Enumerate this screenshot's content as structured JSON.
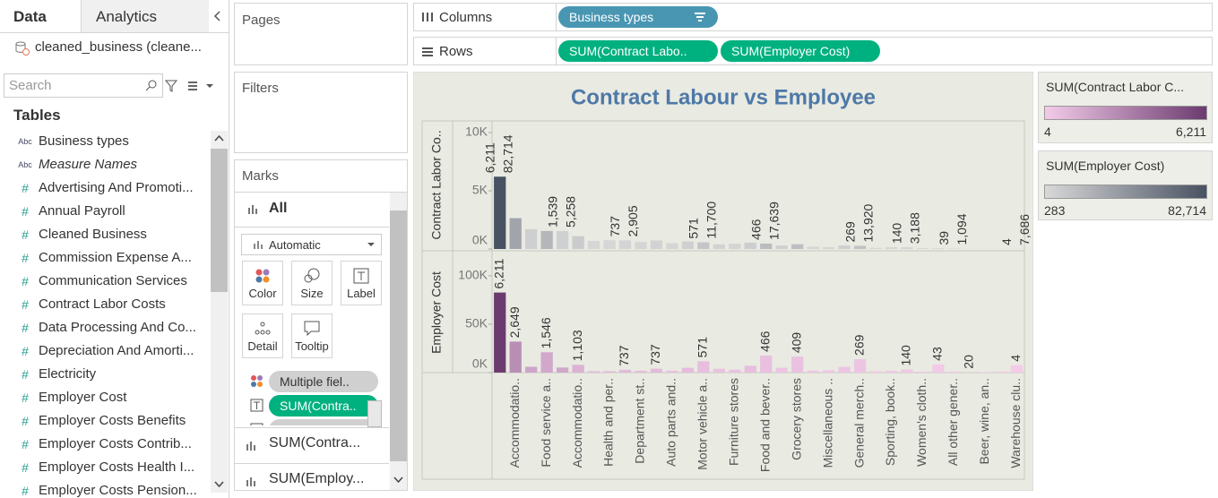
{
  "sidebar": {
    "tabs": [
      "Data",
      "Analytics"
    ],
    "datasource": "cleaned_business (cleane...",
    "search": "Search",
    "tables_heading": "Tables",
    "fields": [
      {
        "icon": "Abc",
        "name": "Business types"
      },
      {
        "icon": "Abc",
        "name": "Measure Names",
        "italic": true
      },
      {
        "icon": "#",
        "name": "Advertising And Promoti..."
      },
      {
        "icon": "#",
        "name": "Annual Payroll"
      },
      {
        "icon": "#",
        "name": "Cleaned Business"
      },
      {
        "icon": "#",
        "name": "Commission Expense A..."
      },
      {
        "icon": "#",
        "name": "Communication Services"
      },
      {
        "icon": "#",
        "name": "Contract Labor Costs"
      },
      {
        "icon": "#",
        "name": "Data Processing And Co..."
      },
      {
        "icon": "#",
        "name": "Depreciation And Amorti..."
      },
      {
        "icon": "#",
        "name": "Electricity"
      },
      {
        "icon": "#",
        "name": "Employer Cost"
      },
      {
        "icon": "#",
        "name": "Employer Costs Benefits"
      },
      {
        "icon": "#",
        "name": "Employer Costs Contrib..."
      },
      {
        "icon": "#",
        "name": "Employer Costs Health I..."
      },
      {
        "icon": "#",
        "name": "Employer Costs Pension..."
      }
    ]
  },
  "shelves": {
    "pages": "Pages",
    "filters": "Filters",
    "columns": {
      "label": "Columns",
      "pills": [
        "Business types"
      ]
    },
    "rows": {
      "label": "Rows",
      "pills": [
        "SUM(Contract Labo..",
        "SUM(Employer Cost)"
      ]
    }
  },
  "marks": {
    "title": "Marks",
    "all": "All",
    "mark_type": "Automatic",
    "buttons": [
      "Color",
      "Size",
      "Label",
      "Detail",
      "Tooltip"
    ],
    "pills": [
      "Multiple fiel..",
      "SUM(Contra..",
      "Multiple fiel.."
    ],
    "sections": [
      "SUM(Contra...",
      "SUM(Employ..."
    ]
  },
  "legends": [
    {
      "title": "SUM(Contract Labor C...",
      "range": [
        4,
        {
          "value": 6211,
          "label": "6,211"
        }
      ],
      "colors": [
        "#f3cbe9",
        "#6b3b6f"
      ]
    },
    {
      "title": "SUM(Employer Cost)",
      "range": [
        283,
        {
          "value": 82714,
          "label": "82,714"
        }
      ],
      "colors": [
        "#d8d8d8",
        "#495262"
      ]
    }
  ],
  "chart_data": [
    {
      "type": "bar",
      "title": "Contract Labour vs Employee",
      "ylabel": "Contract Labor Co..",
      "color_legend": 1,
      "values": [
        6211,
        2649,
        1700,
        1546,
        1539,
        1103,
        700,
        750,
        737,
        600,
        737,
        500,
        650,
        571,
        400,
        450,
        550,
        466,
        300,
        409,
        200,
        150,
        300,
        269,
        100,
        150,
        140,
        80,
        43,
        39,
        20,
        10,
        8,
        4
      ],
      "labels": [
        [
          "6,211",
          "82,714"
        ],
        null,
        null,
        null,
        [
          "1,539",
          "5,258"
        ],
        null,
        null,
        null,
        [
          737,
          "2,905"
        ],
        null,
        null,
        null,
        null,
        [
          571,
          "11,700"
        ],
        null,
        null,
        null,
        [
          466,
          "17,639"
        ],
        null,
        null,
        null,
        null,
        null,
        [
          269,
          "13,920"
        ],
        null,
        null,
        [
          140,
          "3,188"
        ],
        null,
        null,
        [
          39,
          "1,094"
        ],
        null,
        null,
        null,
        [
          4,
          "7,686"
        ]
      ],
      "ylim": [
        0,
        11000
      ],
      "yticks": [
        {
          "value": 0,
          "label": "0K"
        },
        {
          "value": 5000,
          "label": "5K"
        },
        {
          "value": 10000,
          "label": "10K"
        }
      ]
    },
    {
      "type": "bar",
      "ylabel": "Employer Cost",
      "color_legend": 0,
      "categories": [
        null,
        "Accommodatio..",
        null,
        "Food service a..",
        null,
        "Accommodatio..",
        null,
        "Health and per..",
        null,
        "Department st..",
        null,
        "Auto parts and..",
        null,
        "Motor vehicle a..",
        null,
        "Furniture stores",
        null,
        "Food and bever..",
        null,
        "Grocery stores",
        null,
        "Miscellaneous ..",
        null,
        "General merch..",
        null,
        "Sporting, book..",
        null,
        "Women's cloth..",
        null,
        "All other gener..",
        null,
        "Beer, wine, an..",
        null,
        "Warehouse clu.."
      ],
      "values": [
        82714,
        32000,
        6000,
        21000,
        5258,
        8000,
        1500,
        1500,
        2905,
        2000,
        4000,
        2000,
        5000,
        11700,
        4000,
        3000,
        7000,
        17639,
        5000,
        16500,
        2000,
        2500,
        6000,
        13920,
        1500,
        2000,
        3188,
        1000,
        8500,
        1094,
        283,
        500,
        1200,
        7686
      ],
      "labels": [
        "6,211",
        "2,649",
        null,
        "1,546",
        null,
        "1,103",
        null,
        null,
        737,
        null,
        737,
        null,
        null,
        571,
        null,
        null,
        null,
        466,
        null,
        409,
        null,
        null,
        null,
        269,
        null,
        null,
        140,
        null,
        43,
        null,
        20,
        null,
        null,
        4
      ],
      "ylim": [
        0,
        124000
      ],
      "yticks": [
        {
          "value": 0,
          "label": "0K"
        },
        {
          "value": 50000,
          "label": "50K"
        },
        {
          "value": 100000,
          "label": "100K"
        }
      ]
    }
  ]
}
